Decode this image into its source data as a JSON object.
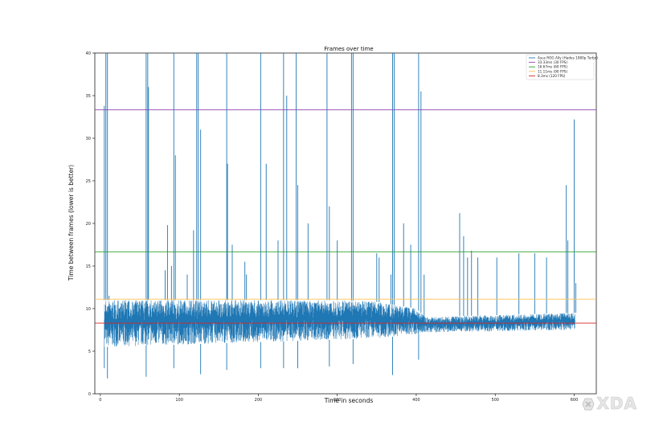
{
  "chart_data": {
    "type": "line",
    "title": "Frames over time",
    "xlabel": "Time in seconds",
    "ylabel": "Time between frames (lower is better)",
    "xlim": [
      -7,
      628
    ],
    "ylim": [
      0,
      40
    ],
    "xticks": [
      0,
      100,
      200,
      300,
      400,
      500,
      600
    ],
    "yticks": [
      0,
      5,
      10,
      15,
      20,
      25,
      30,
      35,
      40
    ],
    "legend_position": "top-right",
    "grid": false,
    "series": [
      {
        "name": "Asus ROG Ally (Hades 1080p Turbo)",
        "color": "#1f77b4",
        "baseline_min": [
          [
            5,
            5.5
          ],
          [
            350,
            6.5
          ],
          [
            400,
            7.0
          ],
          [
            412,
            7.2
          ],
          [
            600,
            7.5
          ]
        ],
        "baseline_max": [
          [
            5,
            11.0
          ],
          [
            300,
            11.0
          ],
          [
            350,
            10.8
          ],
          [
            400,
            10.0
          ],
          [
            412,
            9.0
          ],
          [
            600,
            9.5
          ]
        ],
        "spikes": [
          [
            5,
            33.8
          ],
          [
            7,
            40
          ],
          [
            9,
            40
          ],
          [
            11,
            11.5
          ],
          [
            58,
            40
          ],
          [
            60,
            40
          ],
          [
            61,
            36.0
          ],
          [
            82,
            14.5
          ],
          [
            85,
            19.8
          ],
          [
            90,
            15.0
          ],
          [
            93,
            40
          ],
          [
            95,
            28.0
          ],
          [
            110,
            14.0
          ],
          [
            118,
            19.2
          ],
          [
            122,
            40
          ],
          [
            124,
            40
          ],
          [
            127,
            31.0
          ],
          [
            160,
            40
          ],
          [
            161,
            27.0
          ],
          [
            167,
            17.5
          ],
          [
            183,
            15.5
          ],
          [
            185,
            14.0
          ],
          [
            203,
            40
          ],
          [
            210,
            27.0
          ],
          [
            225,
            18.0
          ],
          [
            232,
            40
          ],
          [
            236,
            35.0
          ],
          [
            248,
            40
          ],
          [
            250,
            24.5
          ],
          [
            263,
            20.0
          ],
          [
            287,
            40
          ],
          [
            290,
            22.0
          ],
          [
            300,
            18.0
          ],
          [
            318,
            40
          ],
          [
            320,
            40
          ],
          [
            350,
            16.5
          ],
          [
            353,
            16.0
          ],
          [
            368,
            14.0
          ],
          [
            370,
            40
          ],
          [
            372,
            40
          ],
          [
            384,
            20.0
          ],
          [
            393,
            17.5
          ],
          [
            403,
            40
          ],
          [
            406,
            35.5
          ],
          [
            410,
            14.0
          ],
          [
            455,
            21.2
          ],
          [
            460,
            18.5
          ],
          [
            465,
            16.0
          ],
          [
            470,
            16.8
          ],
          [
            478,
            16.0
          ],
          [
            502,
            16.0
          ],
          [
            530,
            16.5
          ],
          [
            550,
            16.5
          ],
          [
            565,
            16.0
          ],
          [
            590,
            24.5
          ],
          [
            592,
            18.0
          ],
          [
            600,
            32.2
          ],
          [
            602,
            13.0
          ]
        ],
        "dips": [
          [
            5,
            3.0
          ],
          [
            9,
            1.8
          ],
          [
            58,
            2.0
          ],
          [
            93,
            3.0
          ],
          [
            127,
            2.3
          ],
          [
            160,
            2.8
          ],
          [
            203,
            3.0
          ],
          [
            232,
            3.0
          ],
          [
            250,
            3.0
          ],
          [
            290,
            3.2
          ],
          [
            320,
            3.5
          ],
          [
            370,
            2.2
          ],
          [
            403,
            4.0
          ]
        ]
      },
      {
        "name": "33.33ms (30 FPS)",
        "color": "#8e44ad",
        "value": 33.33
      },
      {
        "name": "16.67ms (60 FPS)",
        "color": "#2ca02c",
        "value": 16.67
      },
      {
        "name": "11.11ms (90 FPS)",
        "color": "#ffbf52",
        "value": 11.11
      },
      {
        "name": "8.3ms (120 FPS)",
        "color": "#d62728",
        "value": 8.3
      }
    ]
  },
  "watermark": {
    "text": "XDA",
    "color": "#dddddd"
  }
}
